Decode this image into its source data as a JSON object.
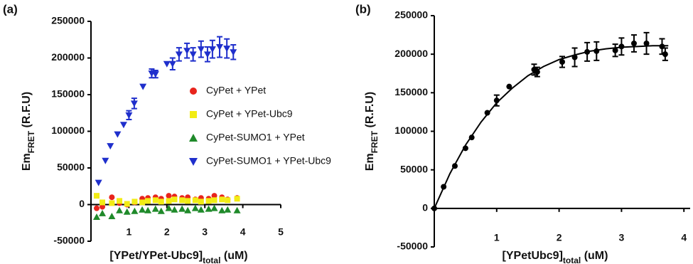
{
  "chart_data": [
    {
      "type": "scatter",
      "panel_label": "(a)",
      "y_label": {
        "main": "Em",
        "sub": "FRET",
        "rest": " (R.F.U)"
      },
      "x_label": {
        "main": "[YPet/YPet-Ubc9]",
        "sub": "total",
        "rest": " (uM)"
      },
      "xlim": [
        0,
        5
      ],
      "xticks": [
        1,
        2,
        3,
        4,
        5
      ],
      "ylim": [
        -50000,
        250000
      ],
      "yticks": [
        -50000,
        0,
        50000,
        100000,
        150000,
        200000,
        250000
      ],
      "series": [
        {
          "name": "CyPet + YPet",
          "color": "#e8241c",
          "marker": "circle",
          "x": [
            0.15,
            0.3,
            0.55,
            0.75,
            0.95,
            1.15,
            1.35,
            1.5,
            1.7,
            1.85,
            2.05,
            2.2,
            2.4,
            2.55,
            2.75,
            2.9,
            3.1,
            3.25,
            3.45,
            3.6,
            3.85
          ],
          "values": [
            -5000,
            -3000,
            10000,
            2000,
            0,
            3000,
            8000,
            9000,
            10000,
            8000,
            12000,
            11000,
            9000,
            10000,
            7000,
            9000,
            8000,
            12000,
            10000,
            7000,
            9000
          ]
        },
        {
          "name": "CyPet + YPet-Ubc9",
          "color": "#f2ec14",
          "marker": "square",
          "x": [
            0.15,
            0.3,
            0.55,
            0.75,
            0.95,
            1.15,
            1.35,
            1.5,
            1.7,
            1.85,
            2.05,
            2.2,
            2.4,
            2.55,
            2.75,
            2.9,
            3.1,
            3.25,
            3.45,
            3.6,
            3.85
          ],
          "values": [
            12000,
            3000,
            2000,
            5000,
            1000,
            4000,
            3000,
            5000,
            6000,
            4000,
            5000,
            7000,
            6000,
            5000,
            6000,
            4000,
            5000,
            6000,
            7000,
            6000,
            8000
          ]
        },
        {
          "name": "CyPet-SUMO1 + YPet",
          "color": "#1f8a2a",
          "marker": "triangle",
          "x": [
            0.15,
            0.3,
            0.55,
            0.75,
            0.95,
            1.15,
            1.35,
            1.5,
            1.7,
            1.85,
            2.05,
            2.2,
            2.4,
            2.55,
            2.75,
            2.9,
            3.1,
            3.25,
            3.45,
            3.6,
            3.85
          ],
          "values": [
            -17000,
            -12000,
            -16000,
            -8000,
            -10000,
            -9000,
            -7000,
            -8000,
            -6000,
            -9000,
            -5000,
            -7000,
            -6000,
            -8000,
            -5000,
            -7000,
            -6000,
            -5000,
            -8000,
            -7000,
            -8000
          ]
        },
        {
          "name": "CyPet-SUMO1 + YPet-Ubc9",
          "color": "#1f2fcc",
          "marker": "triangle-down",
          "x": [
            0.2,
            0.38,
            0.51,
            0.7,
            0.86,
            1.0,
            1.14,
            1.37,
            1.6,
            1.7,
            2.0,
            2.15,
            2.32,
            2.53,
            2.69,
            2.9,
            3.07,
            3.2,
            3.39,
            3.58,
            3.75
          ],
          "values": [
            30000,
            60000,
            80000,
            96000,
            109000,
            122000,
            138000,
            161000,
            179000,
            178000,
            192000,
            192000,
            205000,
            210000,
            205000,
            212000,
            205000,
            212000,
            215000,
            213000,
            208000
          ],
          "errors": [
            null,
            null,
            null,
            null,
            null,
            6000,
            7000,
            null,
            6000,
            5000,
            null,
            8000,
            9000,
            10000,
            9000,
            11000,
            10000,
            12000,
            14000,
            13000,
            10000
          ]
        }
      ]
    },
    {
      "type": "scatter",
      "panel_label": "(b)",
      "y_label": {
        "main": "Em",
        "sub": "FRET",
        "rest": " (R.F.U)"
      },
      "x_label": {
        "main": "[YPetUbc9]",
        "sub": "total",
        "rest": " (uM)"
      },
      "xlim": [
        0,
        4.1
      ],
      "xticks": [
        1,
        2,
        3,
        4
      ],
      "ylim": [
        -50000,
        250000
      ],
      "yticks": [
        -50000,
        0,
        50000,
        100000,
        150000,
        200000,
        250000
      ],
      "series": [
        {
          "type": "line",
          "color": "#000000",
          "x": [
            0,
            0.25,
            0.5,
            0.75,
            1.0,
            1.25,
            1.5,
            1.75,
            2.0,
            2.25,
            2.5,
            2.75,
            3.0,
            3.25,
            3.5,
            3.75
          ],
          "values": [
            0,
            45000,
            82000,
            112000,
            137000,
            156000,
            172000,
            184000,
            193000,
            199000,
            204000,
            207000,
            209000,
            210000,
            211000,
            211000
          ]
        },
        {
          "color": "#000000",
          "marker": "circle",
          "x": [
            0,
            0.15,
            0.33,
            0.5,
            0.6,
            0.85,
            1.0,
            1.2,
            1.6,
            1.65,
            2.05,
            2.25,
            2.45,
            2.6,
            2.9,
            3.0,
            3.2,
            3.4,
            3.65,
            3.7
          ],
          "values": [
            0,
            28000,
            55000,
            78000,
            92000,
            124000,
            140000,
            158000,
            180000,
            177000,
            190000,
            196000,
            203000,
            204000,
            205000,
            210000,
            214000,
            214000,
            210000,
            200000
          ],
          "errors": [
            null,
            null,
            null,
            null,
            null,
            null,
            7000,
            null,
            7000,
            6000,
            7000,
            12000,
            12000,
            12000,
            8000,
            11000,
            11000,
            14000,
            10000,
            8000
          ]
        }
      ]
    }
  ]
}
